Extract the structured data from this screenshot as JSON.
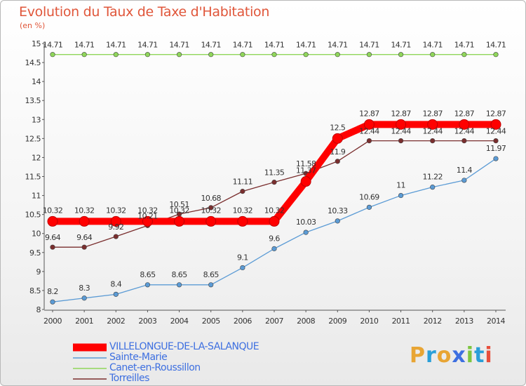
{
  "title": "Evolution du Taux de Taxe d'Habitation",
  "subtitle": "(en %)",
  "brand": {
    "letters": [
      {
        "ch": "P",
        "color": "#e8a534"
      },
      {
        "ch": "r",
        "color": "#2a9fd8"
      },
      {
        "ch": "o",
        "color": "#e8a534"
      },
      {
        "ch": "x",
        "color": "#3d6fe0"
      },
      {
        "ch": "i",
        "color": "#7dc63f"
      },
      {
        "ch": "t",
        "color": "#2a9fd8"
      },
      {
        "ch": "i",
        "color": "#e84e3c"
      }
    ]
  },
  "chart_data": {
    "type": "line",
    "x": [
      "2000",
      "2001",
      "2002",
      "2003",
      "2004",
      "2005",
      "2006",
      "2007",
      "2008",
      "2009",
      "2010",
      "2011",
      "2012",
      "2013",
      "2014"
    ],
    "ylim": [
      8,
      15
    ],
    "yticks": [
      "8",
      "8.5",
      "9",
      "9.5",
      "10",
      "10.5",
      "11",
      "11.5",
      "12",
      "12.5",
      "13",
      "13.5",
      "14",
      "14.5",
      "15"
    ],
    "grid": false,
    "legend_position": "bottom-left",
    "series": [
      {
        "name": "VILLELONGUE-DE-LA-SALANQUE",
        "color": "#ff0000",
        "values": [
          10.32,
          10.32,
          10.32,
          10.32,
          10.32,
          10.32,
          10.32,
          10.32,
          11.37,
          12.5,
          12.87,
          12.87,
          12.87,
          12.87,
          12.87
        ],
        "labels": [
          "10.32",
          "10.32",
          "10.32",
          "10.32",
          "10.32",
          "10.32",
          "10.32",
          "10.32",
          "11.37",
          "12.5",
          "12.87",
          "12.87",
          "12.87",
          "12.87",
          "12.87"
        ]
      },
      {
        "name": "Sainte-Marie",
        "color": "#5b9bd5",
        "values": [
          8.2,
          8.3,
          8.4,
          8.65,
          8.65,
          8.65,
          9.1,
          9.6,
          10.03,
          10.33,
          10.69,
          11,
          11.22,
          11.4,
          11.97
        ],
        "labels": [
          "8.2",
          "8.3",
          "8.4",
          "8.65",
          "8.65",
          "8.65",
          "9.1",
          "9.6",
          "10.03",
          "10.33",
          "10.69",
          "11",
          "11.22",
          "11.4",
          "11.97"
        ]
      },
      {
        "name": "Canet-en-Roussillon",
        "color": "#8fd65a",
        "values": [
          14.71,
          14.71,
          14.71,
          14.71,
          14.71,
          14.71,
          14.71,
          14.71,
          14.71,
          14.71,
          14.71,
          14.71,
          14.71,
          14.71,
          14.71
        ],
        "labels": [
          "14.71",
          "14.71",
          "14.71",
          "14.71",
          "14.71",
          "14.71",
          "14.71",
          "14.71",
          "14.71",
          "14.71",
          "14.71",
          "14.71",
          "14.71",
          "14.71",
          "14.71"
        ]
      },
      {
        "name": "Torreilles",
        "color": "#7a2e2e",
        "values": [
          9.64,
          9.64,
          9.92,
          10.21,
          10.51,
          10.68,
          11.11,
          11.35,
          11.58,
          11.9,
          12.44,
          12.44,
          12.44,
          12.44,
          12.44
        ],
        "labels": [
          "9.64",
          "9.64",
          "9.92",
          "10.21",
          "10.51",
          "10.68",
          "11.11",
          "11.35",
          "11.58",
          "11.9",
          "12.44",
          "12.44",
          "12.44",
          "12.44",
          "12.44"
        ]
      }
    ]
  }
}
